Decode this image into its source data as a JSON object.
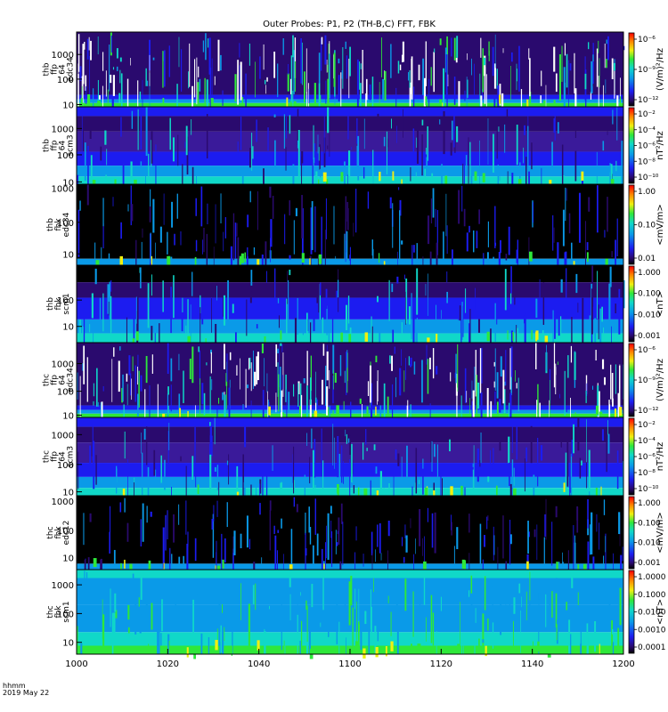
{
  "chart_data": {
    "type": "heatmap",
    "title": "Outer Probes: P1, P2 (TH-B,C) FFT, FBK",
    "x": {
      "label": "hhmm",
      "date": "2019 May 22",
      "range": [
        "1000",
        "1200"
      ],
      "ticks": [
        "1000",
        "1020",
        "1040",
        "1100",
        "1120",
        "1140",
        "1200"
      ]
    },
    "panels": [
      {
        "label": [
          "thb",
          "ffp",
          "64",
          "edc34"
        ],
        "yticks": [
          "1000",
          "100",
          "10"
        ],
        "colorbar_label": "(V/m)²/Hz",
        "colorbar_ticks": [
          "10⁻⁶",
          "10⁻⁹",
          "10⁻¹²"
        ]
      },
      {
        "label": [
          "thb",
          "ffp",
          "64",
          "scm3"
        ],
        "yticks": [
          "1000",
          "100",
          "10"
        ],
        "colorbar_label": "nT²/Hz",
        "colorbar_ticks": [
          "10⁻²",
          "10⁻⁴",
          "10⁻⁶",
          "10⁻⁸",
          "10⁻¹⁰"
        ]
      },
      {
        "label": [
          "thb",
          "fbk",
          "edc34"
        ],
        "yticks": [
          "1000",
          "100",
          "10"
        ],
        "colorbar_label": "<mV/m>",
        "colorbar_ticks": [
          "1.00",
          "0.10",
          "0.01"
        ]
      },
      {
        "label": [
          "thb",
          "fbk",
          "scm1"
        ],
        "yticks": [
          "100",
          "10"
        ],
        "colorbar_label": "<nT>",
        "colorbar_ticks": [
          "1.000",
          "0.100",
          "0.010",
          "0.001"
        ]
      },
      {
        "label": [
          "thc",
          "ffp",
          "64",
          "edc34"
        ],
        "yticks": [
          "1000",
          "100",
          "10"
        ],
        "colorbar_label": "(V/m)²/Hz",
        "colorbar_ticks": [
          "10⁻⁶",
          "10⁻⁹",
          "10⁻¹²"
        ]
      },
      {
        "label": [
          "thc",
          "ffp",
          "64",
          "scm3"
        ],
        "yticks": [
          "1000",
          "100",
          "10"
        ],
        "colorbar_label": "nT²/Hz",
        "colorbar_ticks": [
          "10⁻²",
          "10⁻⁴",
          "10⁻⁶",
          "10⁻⁸",
          "10⁻¹⁰"
        ]
      },
      {
        "label": [
          "thc",
          "fbk",
          "edc12"
        ],
        "yticks": [
          "1000",
          "100",
          "10"
        ],
        "colorbar_label": "<mV/m>",
        "colorbar_ticks": [
          "1.000",
          "0.100",
          "0.010",
          "0.001"
        ]
      },
      {
        "label": [
          "thc",
          "fbk",
          "scm1"
        ],
        "yticks": [
          "1000",
          "100",
          "10"
        ],
        "colorbar_label": "<nT>",
        "colorbar_ticks": [
          "1.0000",
          "0.1000",
          "0.0100",
          "0.0010",
          "0.0001"
        ]
      }
    ]
  }
}
